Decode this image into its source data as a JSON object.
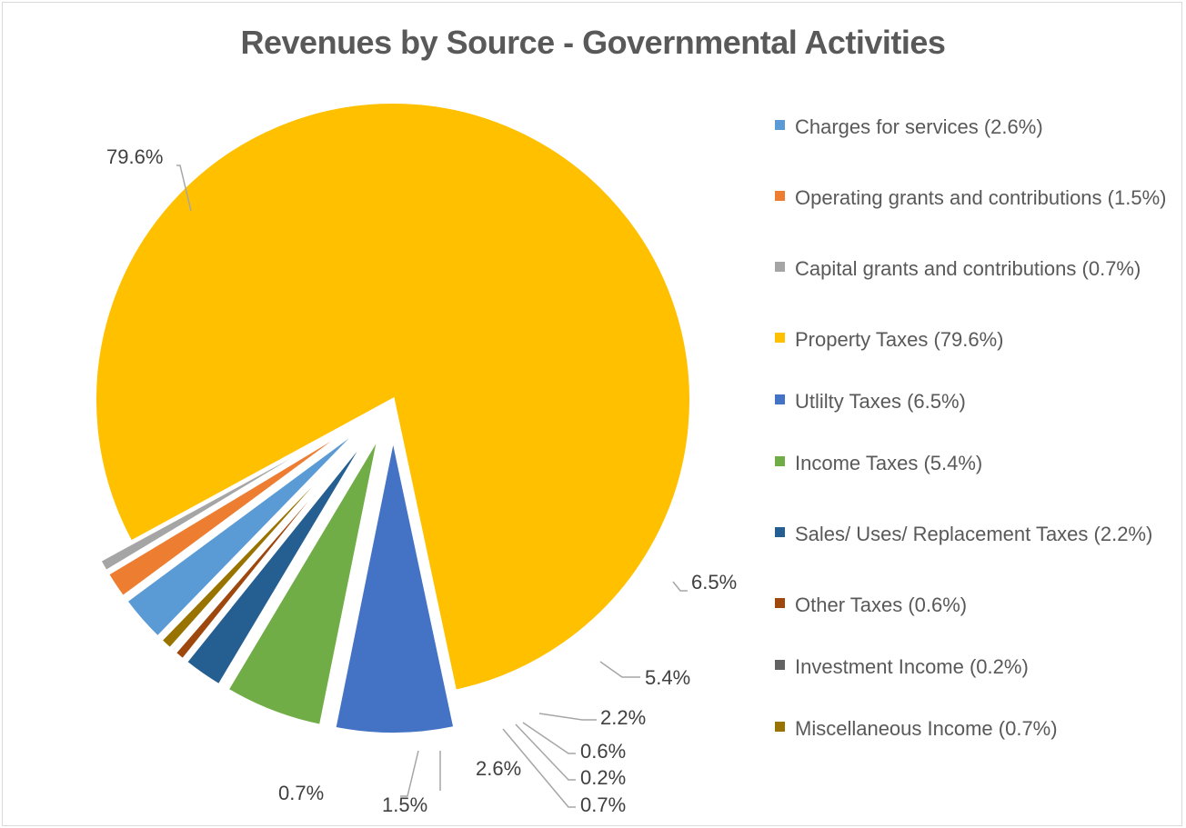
{
  "chart_data": {
    "type": "pie",
    "title": "Revenues by Source - Governmental Activities",
    "legend_position": "right",
    "slices": [
      {
        "name": "Charges for services  (2.6%)",
        "value": 2.6,
        "label": "2.6%",
        "color": "#5b9bd5",
        "exploded": true
      },
      {
        "name": "Operating grants and contributions (1.5%)",
        "value": 1.5,
        "label": "1.5%",
        "color": "#ed7d31",
        "exploded": true
      },
      {
        "name": "Capital grants and contributions (0.7%)",
        "value": 0.7,
        "label": "0.7%",
        "color": "#a5a5a5",
        "exploded": true
      },
      {
        "name": "Property Taxes (79.6%)",
        "value": 79.6,
        "label": "79.6%",
        "color": "#ffc000",
        "exploded": false
      },
      {
        "name": "Utlilty Taxes (6.5%)",
        "value": 6.5,
        "label": "6.5%",
        "color": "#4472c4",
        "exploded": true
      },
      {
        "name": "Income Taxes (5.4%)",
        "value": 5.4,
        "label": "5.4%",
        "color": "#70ad47",
        "exploded": true
      },
      {
        "name": "Sales/ Uses/ Replacement Taxes (2.2%)",
        "value": 2.2,
        "label": "2.2%",
        "color": "#255e91",
        "exploded": true
      },
      {
        "name": "Other Taxes (0.6%)",
        "value": 0.6,
        "label": "0.6%",
        "color": "#9e480e",
        "exploded": true
      },
      {
        "name": "Investment Income  (0.2%)",
        "value": 0.2,
        "label": "0.2%",
        "color": "#636363",
        "exploded": true
      },
      {
        "name": "Miscellaneous Income  (0.7%)",
        "value": 0.7,
        "label": "0.7%",
        "color": "#997300",
        "exploded": true
      }
    ]
  }
}
